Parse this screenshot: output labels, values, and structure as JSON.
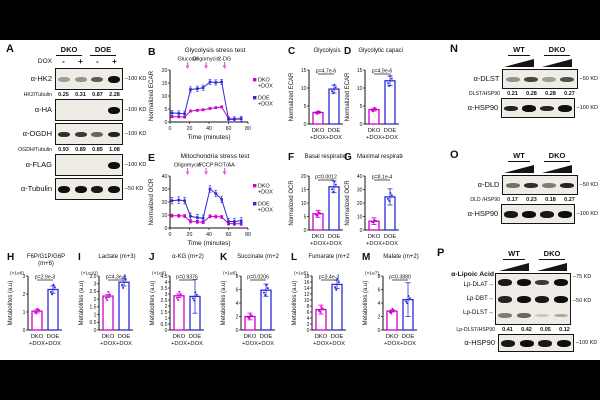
{
  "colors": {
    "magenta": "#CC00CC",
    "blue": "#2B2BD5",
    "arrow": "#E45FD5",
    "ink": "#111111"
  },
  "panels": {
    "A": {
      "letter": "A",
      "groups": [
        "DKO",
        "DOE"
      ],
      "ramps": false,
      "dox_label": "DOX",
      "dox_values": [
        "-",
        "+",
        "-",
        "+"
      ],
      "rows": [
        {
          "type": "blot",
          "label": "α-HK2",
          "marker": "100 KD",
          "bands": [
            0.3,
            0.35,
            0.6,
            1.0
          ]
        },
        {
          "type": "quant",
          "label": "HK2/Tubulin",
          "values": [
            "0.25",
            "0.31",
            "0.87",
            "2.28"
          ]
        },
        {
          "type": "blot",
          "label": "α-HA",
          "marker": "100 KD",
          "bands": [
            0,
            0,
            0,
            1.0
          ]
        },
        {
          "type": "blot",
          "label": "α-OGDH",
          "marker": "100 KD",
          "bands": [
            0.8,
            0.75,
            0.55,
            0.85
          ]
        },
        {
          "type": "quant",
          "label": "OGDH/Tubulin",
          "values": [
            "0.93",
            "0.89",
            "0.85",
            "1.08"
          ]
        },
        {
          "type": "blot",
          "label": "α-FLAG",
          "marker": "100 KD",
          "bands": [
            0,
            0,
            0,
            0.95
          ]
        },
        {
          "type": "blot",
          "label": "α-Tubulin",
          "marker": "50 KD",
          "bands": [
            0.95,
            0.95,
            0.9,
            0.95
          ]
        }
      ]
    },
    "N": {
      "letter": "N",
      "groups": [
        "WT",
        "DKO"
      ],
      "ramps": true,
      "rows": [
        {
          "type": "blot",
          "label": "α-DLST",
          "marker": "50 KD",
          "bands": [
            0.35,
            0.7,
            0.3,
            0.65
          ]
        },
        {
          "type": "quant",
          "label": "DLST/HSP90",
          "values": [
            "0.21",
            "0.28",
            "0.28",
            "0.27"
          ]
        },
        {
          "type": "blot",
          "label": "α-HSP90",
          "marker": "100 KD",
          "bands": [
            0.85,
            0.95,
            0.85,
            0.95
          ]
        }
      ]
    },
    "O": {
      "letter": "O",
      "groups": [
        "WT",
        "DKO"
      ],
      "ramps": true,
      "rows": [
        {
          "type": "blot",
          "label": "α-DLD",
          "marker": "50 KD",
          "bands": [
            0.5,
            0.8,
            0.45,
            0.85
          ]
        },
        {
          "type": "quant",
          "label": "DLD /HSP90",
          "values": [
            "0.17",
            "0.23",
            "0.18",
            "0.27"
          ]
        },
        {
          "type": "blot",
          "label": "α-HSP90",
          "marker": "100 KD",
          "bands": [
            0.9,
            1.0,
            0.9,
            1.0
          ]
        }
      ]
    },
    "P": {
      "letter": "P",
      "groups": [
        "WT",
        "DKO"
      ],
      "ramps": true,
      "lipoic_heading": "α-Lipoic Acid",
      "multiblot": {
        "marker_top": "75 KD",
        "marker_mid": "50 KD",
        "rows": [
          {
            "label": "Lp-DLAT",
            "bands": [
              0.9,
              1.0,
              0.75,
              1.0
            ]
          },
          {
            "label": "Lp-DBT",
            "bands": [
              0.85,
              0.95,
              0.9,
              1.0
            ]
          },
          {
            "label": "Lp-DLST",
            "bands": [
              0.45,
              0.55,
              0.12,
              0.25
            ]
          }
        ]
      },
      "rows": [
        {
          "type": "quant",
          "label": "Lp-DLST/HSP90",
          "values": [
            "0.41",
            "0.42",
            "0.05",
            "0.12"
          ]
        },
        {
          "type": "blot",
          "label": "α-HSP90",
          "marker": "100 KD",
          "bands": [
            0.9,
            0.95,
            0.9,
            0.95
          ]
        }
      ]
    }
  },
  "chart_data": [
    {
      "panel": "B",
      "letter": "B",
      "type": "line",
      "title": "Glycolysis stress test",
      "xlabel": "Time (minutes)",
      "ylabel": "Normalized ECAR",
      "xlim": [
        0,
        80
      ],
      "xticks": [
        0,
        20,
        40,
        60,
        80
      ],
      "ylim": [
        0,
        20
      ],
      "yticks": [
        0,
        5,
        10,
        15,
        20
      ],
      "injections": [
        {
          "label": "Glucose",
          "x": 18
        },
        {
          "label": "Oligomycin",
          "x": 37
        },
        {
          "label": "2-DG",
          "x": 56
        }
      ],
      "legend_position": "right",
      "series": [
        {
          "name": "DKO +DOX",
          "color": "magenta",
          "err": 0.4,
          "x": [
            2,
            9,
            15,
            21,
            28,
            34,
            41,
            47,
            53,
            60,
            66,
            73
          ],
          "y": [
            2,
            2,
            1.9,
            4.2,
            4.5,
            4.7,
            5.2,
            5.5,
            5.8,
            1.3,
            1.2,
            1.3
          ]
        },
        {
          "name": "DOE +DOX",
          "color": "blue",
          "err": 1.0,
          "x": [
            2,
            9,
            15,
            21,
            28,
            34,
            41,
            47,
            53,
            60,
            66,
            73
          ],
          "y": [
            3.5,
            3.3,
            3.2,
            12.5,
            12.8,
            13.2,
            15.4,
            15.2,
            15.4,
            1.0,
            1.0,
            1.2
          ]
        }
      ]
    },
    {
      "panel": "C",
      "letter": "C",
      "type": "bar",
      "title": "Glycolysis",
      "p": "p=4.7e-6",
      "ylabel": "Normalized ECAR",
      "ylim": [
        0,
        15
      ],
      "yticks": [
        0,
        5,
        10,
        15
      ],
      "categories": [
        "DKO +DOX",
        "DOE +DOX"
      ],
      "values": [
        3.2,
        9.7
      ],
      "errors": [
        0.3,
        1.1
      ],
      "colors": [
        "magenta",
        "blue"
      ]
    },
    {
      "panel": "D",
      "letter": "D",
      "type": "bar",
      "title": "Glycolytic capacity",
      "p": "p=4.9e-6",
      "ylabel": "Normalized ECAR",
      "ylim": [
        0,
        15
      ],
      "yticks": [
        0,
        5,
        10,
        15
      ],
      "categories": [
        "DKO +DOX",
        "DOE +DOX"
      ],
      "values": [
        4.0,
        12.0
      ],
      "errors": [
        0.4,
        1.3
      ],
      "colors": [
        "magenta",
        "blue"
      ]
    },
    {
      "panel": "E",
      "letter": "E",
      "type": "line",
      "title": "Mitochondria stress test",
      "xlabel": "Time (minutes)",
      "ylabel": "Normalized OCR",
      "xlim": [
        0,
        80
      ],
      "xticks": [
        0,
        20,
        40,
        60,
        80
      ],
      "ylim": [
        0,
        40
      ],
      "yticks": [
        0,
        10,
        20,
        30,
        40
      ],
      "injections": [
        {
          "label": "Oligomycin",
          "x": 18
        },
        {
          "label": "FCCP",
          "x": 37
        },
        {
          "label": "ROT/AA",
          "x": 56
        }
      ],
      "legend_position": "right",
      "series": [
        {
          "name": "DKO +DOX",
          "color": "magenta",
          "err": 1.2,
          "x": [
            2,
            9,
            15,
            21,
            28,
            34,
            41,
            47,
            53,
            60,
            66,
            73
          ],
          "y": [
            9.5,
            9.4,
            9.2,
            5.0,
            4.7,
            4.5,
            9.0,
            8.8,
            8.5,
            3.5,
            3.2,
            3.2
          ]
        },
        {
          "name": "DOE +DOX",
          "color": "blue",
          "err": 2.5,
          "x": [
            2,
            9,
            15,
            21,
            28,
            34,
            41,
            47,
            53,
            60,
            66,
            73
          ],
          "y": [
            21,
            21.5,
            21,
            9,
            8,
            7.5,
            30,
            26.5,
            22,
            5,
            5,
            5.5
          ]
        }
      ]
    },
    {
      "panel": "F",
      "letter": "F",
      "type": "bar",
      "title": "Basal respiration",
      "p": "p=0.0012",
      "ylabel": "Normalized OCR",
      "ylim": [
        0,
        20
      ],
      "yticks": [
        0,
        5,
        10,
        15,
        20
      ],
      "categories": [
        "DKO +DOX",
        "DOE +DOX"
      ],
      "values": [
        6.0,
        16.0
      ],
      "errors": [
        1.3,
        2.2
      ],
      "colors": [
        "magenta",
        "blue"
      ]
    },
    {
      "panel": "G",
      "letter": "G",
      "type": "bar",
      "title": "Maximal respiration",
      "p": "p=8.1e-4",
      "ylabel": "Normalized OCR",
      "ylim": [
        0,
        40
      ],
      "yticks": [
        0,
        10,
        20,
        30,
        40
      ],
      "categories": [
        "DKO +DOX",
        "DOE +DOX"
      ],
      "values": [
        6.5,
        24.5
      ],
      "errors": [
        2.5,
        6.0
      ],
      "colors": [
        "magenta",
        "blue"
      ]
    },
    {
      "panel": "H",
      "letter": "H",
      "type": "bar",
      "title": "F6P/G1P/G6P",
      "title2": "(m+6)",
      "p": "p=2.9e-3",
      "scale": "(×1e8)",
      "ylabel": "Metabolites (a.u)",
      "ylim": [
        0,
        3
      ],
      "yticks": [
        0,
        1,
        2,
        3
      ],
      "categories": [
        "DKO +DOX",
        "DOE +DOX"
      ],
      "values": [
        1.05,
        2.25
      ],
      "errors": [
        0.1,
        0.2
      ],
      "colors": [
        "magenta",
        "blue"
      ]
    },
    {
      "panel": "I",
      "letter": "I",
      "type": "bar",
      "title": "Lactate (m+3)",
      "p": "p=4.3e-3",
      "scale": "(×1e10)",
      "ylabel": "Metabolites (a.u)",
      "ylim": [
        0,
        3.5
      ],
      "yticks": [
        0,
        0.5,
        1,
        1.5,
        2,
        2.5,
        3,
        3.5
      ],
      "categories": [
        "DKO +DOX",
        "DOE +DOX"
      ],
      "values": [
        2.2,
        3.1
      ],
      "errors": [
        0.1,
        0.25
      ],
      "colors": [
        "magenta",
        "blue"
      ]
    },
    {
      "panel": "J",
      "letter": "J",
      "type": "bar",
      "title": "α-KG (m+2)",
      "p": "p=0.9376",
      "scale": "(×1e6)",
      "ylabel": "Metabolites (a.u)",
      "ylim": [
        0,
        4.5
      ],
      "yticks": [
        0,
        0.5,
        1,
        1.5,
        2,
        2.5,
        3,
        3.5,
        4,
        4.5
      ],
      "categories": [
        "DKO +DOX",
        "DOE +DOX"
      ],
      "values": [
        2.85,
        2.8
      ],
      "errors": [
        0.15,
        1.4
      ],
      "colors": [
        "magenta",
        "blue"
      ]
    },
    {
      "panel": "K",
      "letter": "K",
      "type": "bar",
      "title": "Succinate (m+2)",
      "p": "p=0.0206",
      "scale": "(×1e6)",
      "ylabel": "Metabolites (a.u)",
      "ylim": [
        0,
        8
      ],
      "yticks": [
        0,
        2,
        4,
        6,
        8
      ],
      "categories": [
        "DKO +DOX",
        "DOE +DOX"
      ],
      "values": [
        2.0,
        5.9
      ],
      "errors": [
        0.5,
        0.9
      ],
      "colors": [
        "magenta",
        "blue"
      ]
    },
    {
      "panel": "L",
      "letter": "L",
      "type": "bar",
      "title": "Fumarate (m+2)",
      "p": "p=3.4e-3",
      "scale": "(×1e5)",
      "ylabel": "Metabolites (a.u)",
      "ylim": [
        0,
        18
      ],
      "yticks": [
        0,
        2,
        4,
        6,
        8,
        10,
        12,
        14,
        16,
        18
      ],
      "categories": [
        "DKO +DOX",
        "DOE +DOX"
      ],
      "values": [
        6.8,
        15.2
      ],
      "errors": [
        1.5,
        1.4
      ],
      "colors": [
        "magenta",
        "blue"
      ]
    },
    {
      "panel": "M",
      "letter": "M",
      "type": "bar",
      "title": "Malate (m+2)",
      "p": "p=0.3880",
      "scale": "(×1e7)",
      "ylabel": "Metabolites (a.u)",
      "ylim": [
        0,
        8
      ],
      "yticks": [
        0,
        2,
        4,
        6,
        8
      ],
      "categories": [
        "DKO +DOX",
        "DOE +DOX"
      ],
      "values": [
        2.8,
        4.5
      ],
      "errors": [
        0.15,
        2.5
      ],
      "colors": [
        "magenta",
        "blue"
      ]
    }
  ]
}
